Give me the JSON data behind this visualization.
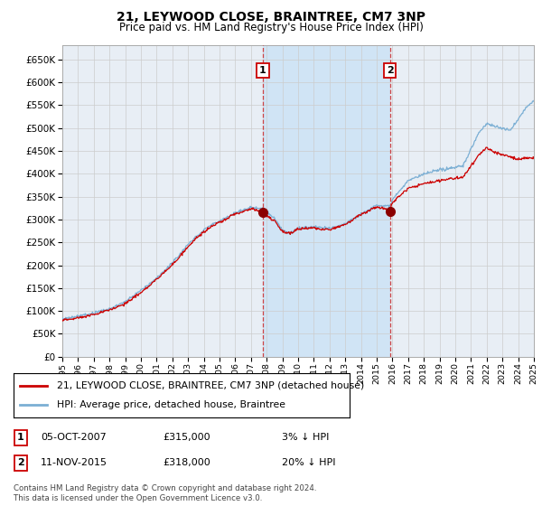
{
  "title": "21, LEYWOOD CLOSE, BRAINTREE, CM7 3NP",
  "subtitle": "Price paid vs. HM Land Registry's House Price Index (HPI)",
  "ylim": [
    0,
    680000
  ],
  "yticks": [
    0,
    50000,
    100000,
    150000,
    200000,
    250000,
    300000,
    350000,
    400000,
    450000,
    500000,
    550000,
    600000,
    650000
  ],
  "hpi_color": "#7bafd4",
  "price_color": "#cc0000",
  "marker_color": "#8b0000",
  "vline_color": "#cc3333",
  "grid_color": "#cccccc",
  "bg_color": "#e8eef5",
  "shade_color": "#d0e4f5",
  "purchase1": {
    "date": "05-OCT-2007",
    "price": 315000,
    "label": "1",
    "year": 2007.75
  },
  "purchase2": {
    "date": "11-NOV-2015",
    "price": 318000,
    "label": "2",
    "year": 2015.85
  },
  "legend_line1": "21, LEYWOOD CLOSE, BRAINTREE, CM7 3NP (detached house)",
  "legend_line2": "HPI: Average price, detached house, Braintree",
  "footnote": "Contains HM Land Registry data © Crown copyright and database right 2024.\nThis data is licensed under the Open Government Licence v3.0.",
  "xmin": 1995,
  "xmax": 2025,
  "hpi_anchors_x": [
    1995,
    1996,
    1997,
    1998,
    1999,
    2000,
    2001,
    2002,
    2003,
    2004,
    2005,
    2006,
    2007,
    2007.75,
    2008,
    2008.5,
    2009,
    2009.5,
    2010,
    2011,
    2012,
    2013,
    2014,
    2015,
    2015.85,
    2016,
    2017,
    2018,
    2019,
    2020,
    2020.5,
    2021,
    2021.5,
    2022,
    2022.5,
    2023,
    2023.5,
    2024,
    2024.5,
    2025
  ],
  "hpi_anchors_y": [
    82000,
    88000,
    95000,
    105000,
    120000,
    145000,
    172000,
    205000,
    245000,
    278000,
    298000,
    315000,
    328000,
    325000,
    318000,
    305000,
    278000,
    270000,
    282000,
    285000,
    280000,
    292000,
    312000,
    332000,
    330000,
    345000,
    385000,
    400000,
    408000,
    415000,
    418000,
    455000,
    490000,
    510000,
    505000,
    500000,
    495000,
    520000,
    545000,
    560000
  ],
  "price_anchors_x": [
    1995,
    1996,
    1997,
    1998,
    1999,
    2000,
    2001,
    2002,
    2003,
    2004,
    2005,
    2006,
    2007,
    2007.75,
    2008,
    2008.5,
    2009,
    2009.5,
    2010,
    2011,
    2012,
    2013,
    2014,
    2015,
    2015.85,
    2016,
    2017,
    2018,
    2019,
    2020,
    2020.5,
    2021,
    2021.5,
    2022,
    2022.5,
    2023,
    2024,
    2025
  ],
  "price_anchors_y": [
    80000,
    85000,
    92000,
    102000,
    116000,
    140000,
    168000,
    200000,
    240000,
    272000,
    292000,
    310000,
    322000,
    315000,
    308000,
    295000,
    272000,
    268000,
    278000,
    280000,
    276000,
    288000,
    308000,
    325000,
    318000,
    335000,
    365000,
    375000,
    382000,
    388000,
    390000,
    415000,
    440000,
    455000,
    445000,
    440000,
    430000,
    435000
  ]
}
